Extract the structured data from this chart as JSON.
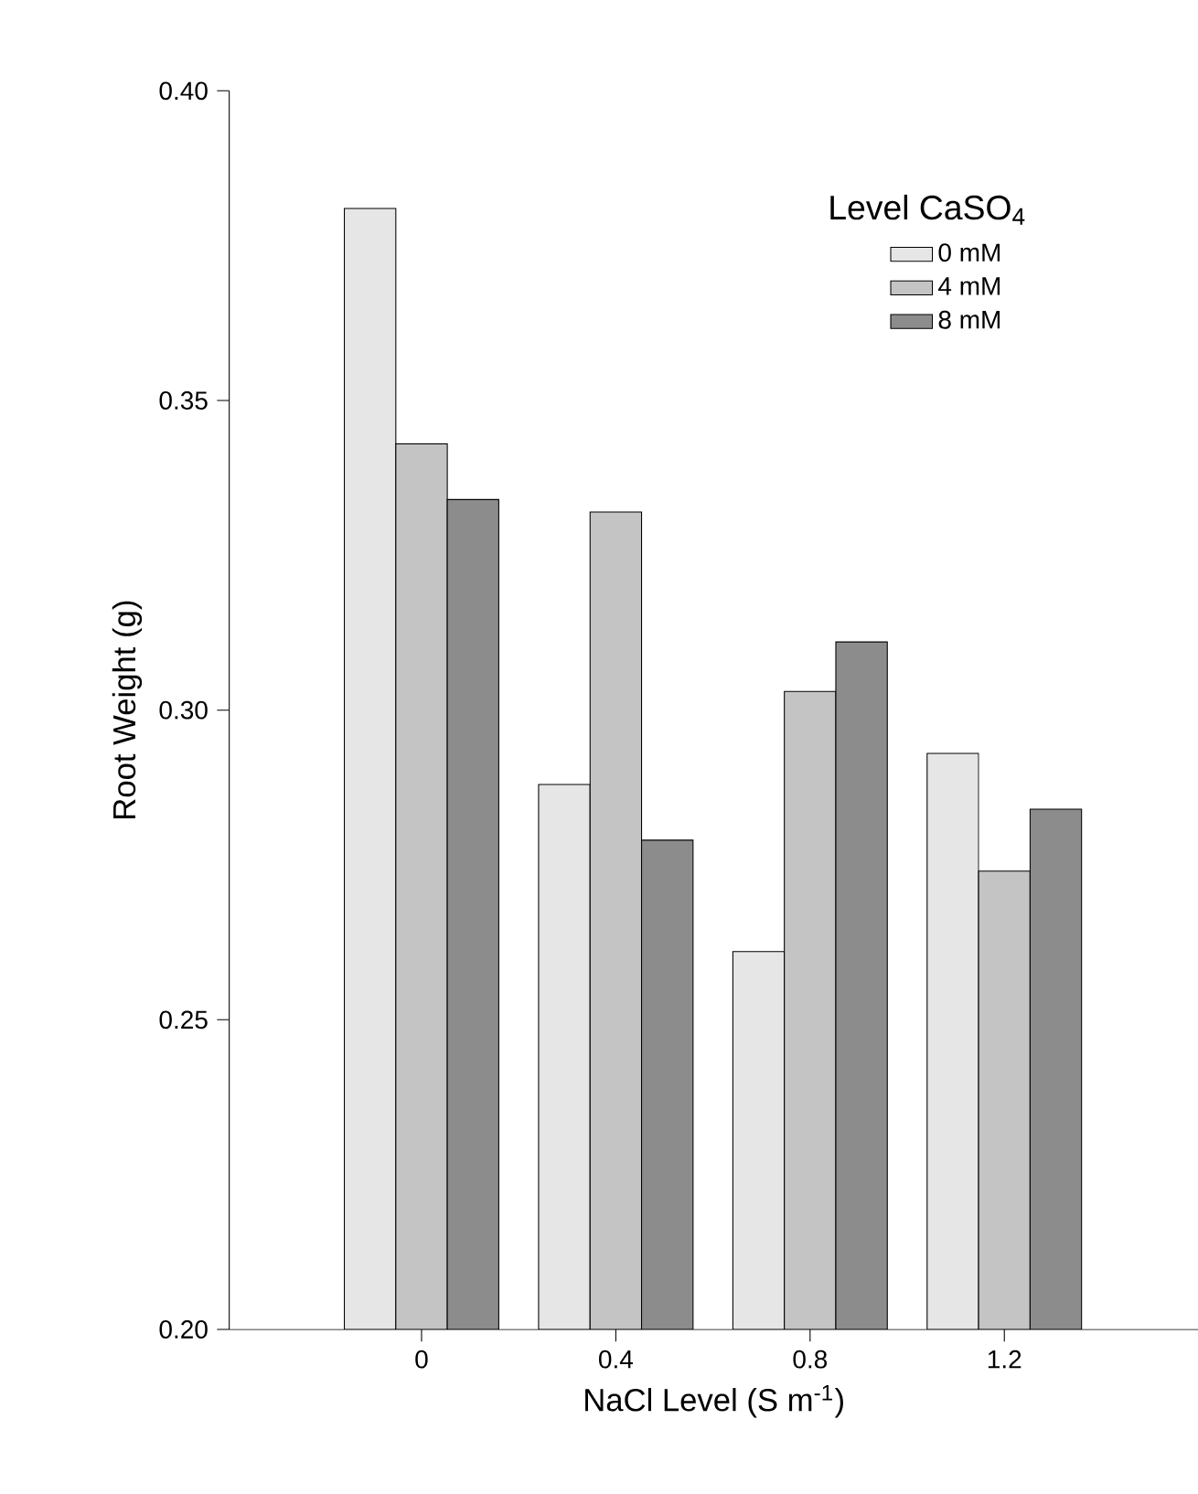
{
  "chart_data": {
    "type": "bar",
    "xlabel": "NaCl Level (S m$^{-1}$)",
    "ylabel": "Root Weight (g)",
    "legend_title": "Level CaSO$_{4}$",
    "categories": [
      "0",
      "0.4",
      "0.8",
      "1.2"
    ],
    "series": [
      {
        "name": "0 mM",
        "color": "#e6e6e6",
        "values": [
          0.381,
          0.288,
          0.261,
          0.293
        ]
      },
      {
        "name": "4 mM",
        "color": "#c4c4c4",
        "values": [
          0.343,
          0.332,
          0.303,
          0.274
        ]
      },
      {
        "name": "8 mM",
        "color": "#8c8c8c",
        "values": [
          0.334,
          0.279,
          0.311,
          0.284
        ]
      }
    ],
    "ylim": [
      0.2,
      0.4
    ],
    "yticks": [
      {
        "value": 0.2,
        "label": "0.20"
      },
      {
        "value": 0.25,
        "label": "0.25"
      },
      {
        "value": 0.3,
        "label": "0.30"
      },
      {
        "value": 0.35,
        "label": "0.35"
      },
      {
        "value": 0.4,
        "label": "0.40"
      }
    ],
    "grid": false,
    "legend": "top right"
  }
}
